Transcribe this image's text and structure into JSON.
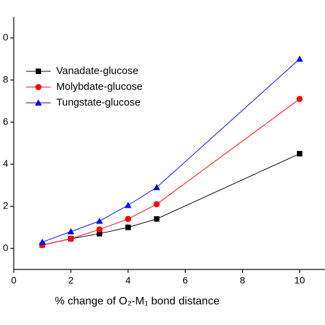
{
  "chart_data": {
    "type": "line",
    "xlabel": "% change of O₂-M₁ bond distance",
    "x": [
      1,
      2,
      3,
      4,
      5,
      10
    ],
    "series": [
      {
        "name": "Vanadate-glucose",
        "color": "#000000",
        "marker": "square",
        "values": [
          0.016,
          0.046,
          0.07,
          0.1,
          0.14,
          0.45
        ]
      },
      {
        "name": "Molybdate-glucose",
        "color": "#ff0000",
        "marker": "circle",
        "values": [
          0.016,
          0.046,
          0.09,
          0.14,
          0.21,
          0.71
        ]
      },
      {
        "name": "Tungstate-glucose",
        "color": "#0000ff",
        "marker": "triangle",
        "values": [
          0.03,
          0.08,
          0.13,
          0.205,
          0.29,
          0.9
        ]
      }
    ],
    "xlim": [
      0,
      11
    ],
    "xticks": [
      0,
      2,
      4,
      6,
      8,
      10
    ],
    "ylim": [
      -0.1,
      1.1
    ],
    "yticks": [
      0,
      {
        "value": 0.2,
        "label": "2"
      },
      {
        "value": 0.4,
        "label": "4"
      },
      {
        "value": 0.6,
        "label": "6"
      },
      {
        "value": 0.8,
        "label": "8"
      },
      {
        "value": 1.0,
        "label": "0"
      }
    ],
    "legend": "upper-left"
  }
}
